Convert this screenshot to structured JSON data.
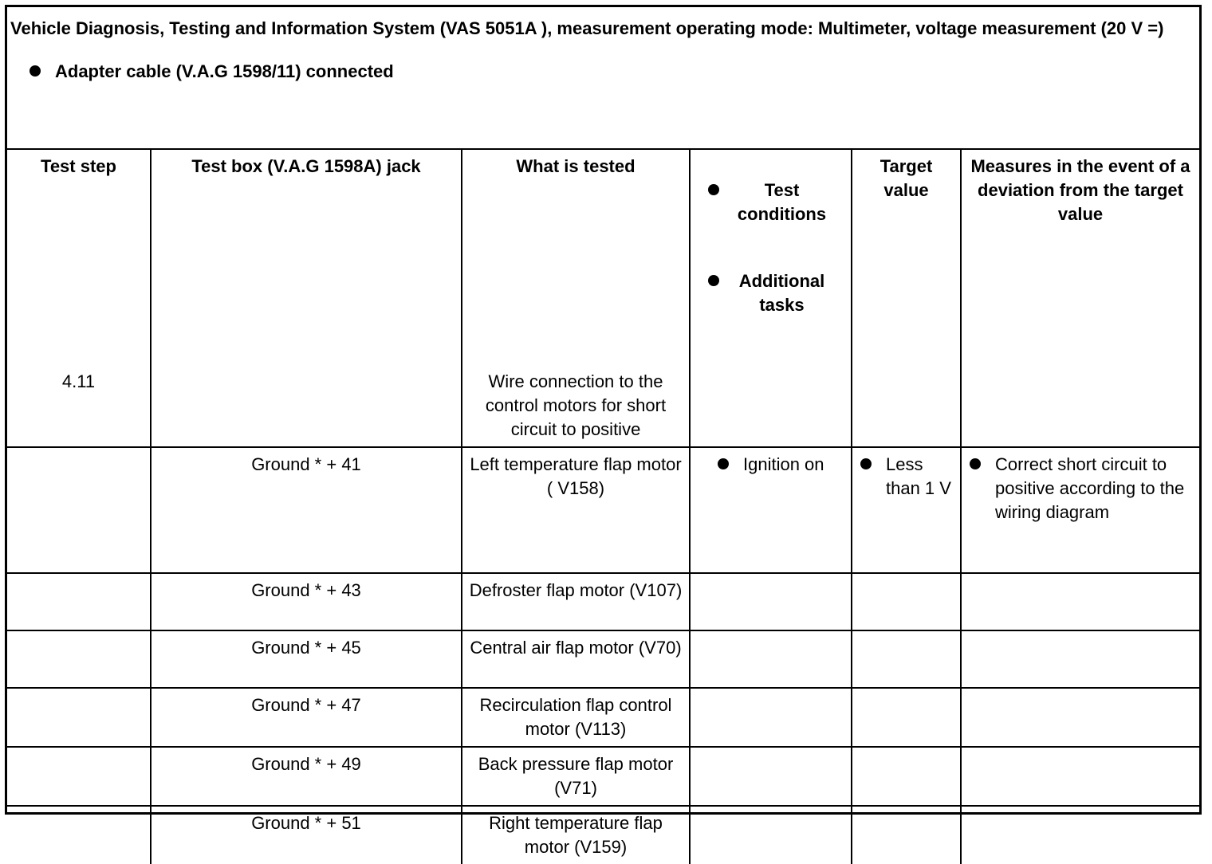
{
  "header": {
    "title": "Vehicle Diagnosis, Testing and Information System (VAS 5051A ), measurement operating mode: Multimeter, voltage measurement (20 V =)",
    "prerequisite": "Adapter cable (V.A.G 1598/11) connected"
  },
  "table": {
    "columns": [
      "Test step",
      "Test box (V.A.G 1598A) jack",
      "What is tested",
      "Test conditions",
      "Target value",
      "Measures in the event of a deviation from the target value"
    ],
    "columns_extra": {
      "additional_tasks": "Additional tasks"
    },
    "rows": [
      {
        "step": "4.11",
        "jack": "",
        "tested": "Wire connection to the control motors for short circuit to positive",
        "conditions": "",
        "target": "",
        "measures": ""
      },
      {
        "step": "",
        "jack": "Ground * + 41",
        "tested": "Left temperature flap motor ( V158)",
        "conditions": "Ignition on",
        "target": "Less than 1 V",
        "measures": "Correct short circuit to positive according to the wiring diagram"
      },
      {
        "step": "",
        "jack": "Ground * + 43",
        "tested": "Defroster flap motor (V107)",
        "conditions": "",
        "target": "",
        "measures": ""
      },
      {
        "step": "",
        "jack": "Ground * + 45",
        "tested": "Central air flap motor (V70)",
        "conditions": "",
        "target": "",
        "measures": ""
      },
      {
        "step": "",
        "jack": "Ground * + 47",
        "tested": "Recirculation flap control motor (V113)",
        "conditions": "",
        "target": "",
        "measures": ""
      },
      {
        "step": "",
        "jack": "Ground * + 49",
        "tested": "Back pressure flap motor (V71)",
        "conditions": "",
        "target": "",
        "measures": ""
      },
      {
        "step": "",
        "jack": "Ground * + 51",
        "tested": "Right temperature flap motor (V159)",
        "conditions": "",
        "target": "",
        "measures": ""
      }
    ]
  }
}
